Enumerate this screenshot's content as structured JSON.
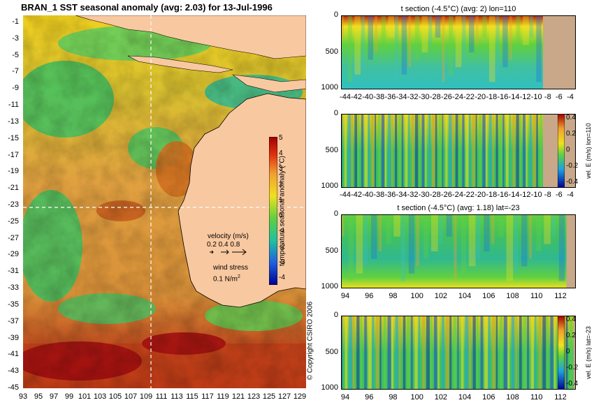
{
  "map": {
    "title": "BRAN_1  SST seasonal anomaly  (avg: 2.03)  for 13-Jul-1996",
    "lat_ticks": [
      "-1",
      "-3",
      "-5",
      "-7",
      "-9",
      "-11",
      "-13",
      "-15",
      "-17",
      "-19",
      "-21",
      "-23",
      "-25",
      "-27",
      "-29",
      "-31",
      "-33",
      "-35",
      "-37",
      "-39",
      "-41",
      "-43",
      "-45"
    ],
    "lon_ticks": [
      "93",
      "95",
      "97",
      "99",
      "101",
      "103",
      "105",
      "107",
      "109",
      "111",
      "113",
      "115",
      "117",
      "119",
      "121",
      "123",
      "125",
      "127",
      "129"
    ],
    "colorbar": {
      "label": "temperature seasonal anomaly (°C)",
      "ticks": [
        "5",
        "4",
        "3",
        "2",
        "1",
        "0",
        "-1",
        "-2",
        "-3",
        "-4"
      ]
    },
    "velocity_legend": {
      "title": "velocity (m/s)",
      "values": "0.2 0.4 0.8"
    },
    "wind_legend": {
      "title": "wind stress",
      "value": "0.1 N/m",
      "superscript": "2"
    },
    "section_lon": 110,
    "section_lat": -23,
    "colors": {
      "land": "#f8c8a0",
      "ocean_mid": "#e0a040",
      "warm": "#b01010"
    }
  },
  "panels": [
    {
      "title": "t section (-4.5°C) (avg: 2) lon=110",
      "y_ticks": [
        "0",
        "500",
        "1000"
      ],
      "x_ticks": [
        "-44",
        "-42",
        "-40",
        "-38",
        "-36",
        "-34",
        "-32",
        "-30",
        "-28",
        "-26",
        "-24",
        "-22",
        "-20",
        "-18",
        "-16",
        "-14",
        "-12",
        "-10",
        "-8",
        "-6",
        "-4"
      ],
      "colorbar": null
    },
    {
      "title": "",
      "y_ticks": [
        "0",
        "500",
        "1000"
      ],
      "x_ticks": [
        "-44",
        "-42",
        "-40",
        "-38",
        "-36",
        "-34",
        "-32",
        "-30",
        "-28",
        "-26",
        "-24",
        "-22",
        "-20",
        "-18",
        "-16",
        "-14",
        "-12",
        "-10",
        "-8",
        "-6",
        "-4"
      ],
      "colorbar": {
        "label": "vel. E (m/s) lon=110",
        "ticks": [
          "0.4",
          "0.2",
          "0",
          "-0.2",
          "-0.4"
        ]
      }
    },
    {
      "title": "t section (-4.5°C) (avg: 1.18) lat=-23",
      "y_ticks": [
        "0",
        "500",
        "1000"
      ],
      "x_ticks": [
        "94",
        "96",
        "98",
        "100",
        "102",
        "104",
        "106",
        "108",
        "110",
        "112"
      ],
      "colorbar": null
    },
    {
      "title": "",
      "y_ticks": [
        "0",
        "500",
        "1000"
      ],
      "x_ticks": [
        "94",
        "96",
        "98",
        "100",
        "102",
        "104",
        "106",
        "108",
        "110",
        "112"
      ],
      "colorbar": {
        "label": "vel. E (m/s) lat=-23",
        "ticks": [
          "0.4",
          "0.2",
          "0",
          "-0.2",
          "-0.4"
        ]
      }
    }
  ],
  "copyright": "© Copyright CSIRO 2006",
  "chart_data": [
    {
      "type": "heatmap",
      "title": "BRAN_1  SST seasonal anomaly  (avg: 2.03)  for 13-Jul-1996",
      "xlabel": "",
      "ylabel": "",
      "xlim": [
        93,
        130
      ],
      "ylim": [
        -45,
        0
      ],
      "colorbar_range": [
        -4,
        5
      ],
      "colorbar_label": "temperature seasonal anomaly (°C)",
      "avg": 2.03,
      "grid": false
    },
    {
      "type": "heatmap",
      "title": "t section (-4.5°C) (avg: 2) lon=110",
      "xlim": [
        -45,
        -3
      ],
      "ylim": [
        1000,
        0
      ],
      "avg": 2
    },
    {
      "type": "heatmap",
      "title": "",
      "xlim": [
        -45,
        -3
      ],
      "ylim": [
        1000,
        0
      ],
      "colorbar_range": [
        -0.4,
        0.4
      ],
      "colorbar_label": "vel. E (m/s) lon=110"
    },
    {
      "type": "heatmap",
      "title": "t section (-4.5°C) (avg: 1.18) lat=-23",
      "xlim": [
        93,
        114
      ],
      "ylim": [
        1000,
        0
      ],
      "avg": 1.18
    },
    {
      "type": "heatmap",
      "title": "",
      "xlim": [
        93,
        114
      ],
      "ylim": [
        1000,
        0
      ],
      "colorbar_range": [
        -0.4,
        0.4
      ],
      "colorbar_label": "vel. E (m/s) lat=-23"
    }
  ]
}
